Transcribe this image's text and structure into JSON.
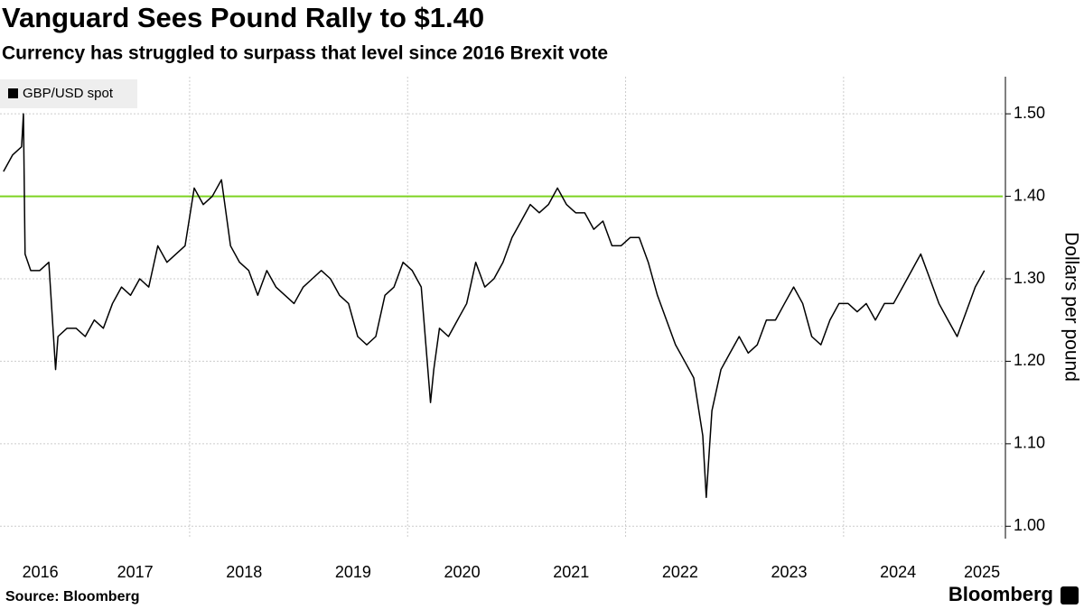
{
  "chart_data": {
    "type": "line",
    "title": "Vanguard Sees Pound Rally to $1.40",
    "subtitle": "Currency has struggled to surpass that level since 2016 Brexit vote",
    "y_label": "Dollars per pound",
    "source": "Source: Bloomberg",
    "logo": "Bloomberg",
    "x": [
      2016.292,
      2016.375,
      2016.458,
      2016.475,
      2016.49,
      2016.542,
      2016.625,
      2016.708,
      2016.77,
      2016.792,
      2016.875,
      2016.958,
      2017.042,
      2017.125,
      2017.208,
      2017.292,
      2017.375,
      2017.458,
      2017.542,
      2017.625,
      2017.708,
      2017.792,
      2017.875,
      2017.958,
      2018.042,
      2018.125,
      2018.208,
      2018.292,
      2018.375,
      2018.458,
      2018.542,
      2018.625,
      2018.708,
      2018.792,
      2018.875,
      2018.958,
      2019.042,
      2019.125,
      2019.208,
      2019.292,
      2019.375,
      2019.458,
      2019.542,
      2019.625,
      2019.708,
      2019.792,
      2019.875,
      2019.958,
      2020.042,
      2020.125,
      2020.21,
      2020.24,
      2020.292,
      2020.375,
      2020.458,
      2020.542,
      2020.625,
      2020.708,
      2020.792,
      2020.875,
      2020.958,
      2021.042,
      2021.125,
      2021.208,
      2021.292,
      2021.375,
      2021.458,
      2021.542,
      2021.625,
      2021.708,
      2021.792,
      2021.875,
      2021.958,
      2022.042,
      2022.125,
      2022.208,
      2022.292,
      2022.375,
      2022.458,
      2022.542,
      2022.625,
      2022.708,
      2022.74,
      2022.792,
      2022.875,
      2022.958,
      2023.042,
      2023.125,
      2023.208,
      2023.292,
      2023.375,
      2023.458,
      2023.542,
      2023.625,
      2023.708,
      2023.792,
      2023.875,
      2023.958,
      2024.042,
      2024.125,
      2024.208,
      2024.292,
      2024.375,
      2024.458,
      2024.542,
      2024.625,
      2024.708,
      2024.792,
      2024.875,
      2024.958,
      2025.042,
      2025.125,
      2025.208,
      2025.292
    ],
    "series": [
      {
        "name": "GBP/USD spot",
        "color": "#000000",
        "values": [
          1.43,
          1.45,
          1.46,
          1.5,
          1.33,
          1.31,
          1.31,
          1.32,
          1.19,
          1.23,
          1.24,
          1.24,
          1.23,
          1.25,
          1.24,
          1.27,
          1.29,
          1.28,
          1.3,
          1.29,
          1.34,
          1.32,
          1.33,
          1.34,
          1.41,
          1.39,
          1.4,
          1.42,
          1.34,
          1.32,
          1.31,
          1.28,
          1.31,
          1.29,
          1.28,
          1.27,
          1.29,
          1.3,
          1.31,
          1.3,
          1.28,
          1.27,
          1.23,
          1.22,
          1.23,
          1.28,
          1.29,
          1.32,
          1.31,
          1.29,
          1.15,
          1.19,
          1.24,
          1.23,
          1.25,
          1.27,
          1.32,
          1.29,
          1.3,
          1.32,
          1.35,
          1.37,
          1.39,
          1.38,
          1.39,
          1.41,
          1.39,
          1.38,
          1.38,
          1.36,
          1.37,
          1.34,
          1.34,
          1.35,
          1.35,
          1.32,
          1.28,
          1.25,
          1.22,
          1.2,
          1.18,
          1.11,
          1.035,
          1.14,
          1.19,
          1.21,
          1.23,
          1.21,
          1.22,
          1.25,
          1.25,
          1.27,
          1.29,
          1.27,
          1.23,
          1.22,
          1.25,
          1.27,
          1.27,
          1.26,
          1.27,
          1.25,
          1.27,
          1.27,
          1.29,
          1.31,
          1.33,
          1.3,
          1.27,
          1.25,
          1.23,
          1.26,
          1.29,
          1.31
        ]
      }
    ],
    "xlim": [
      2016.26,
      2025.46
    ],
    "xticks": [
      {
        "value": 2016.63,
        "label": "2016"
      },
      {
        "value": 2017.5,
        "label": "2017"
      },
      {
        "value": 2018.5,
        "label": "2018"
      },
      {
        "value": 2019.5,
        "label": "2019"
      },
      {
        "value": 2020.5,
        "label": "2020"
      },
      {
        "value": 2021.5,
        "label": "2021"
      },
      {
        "value": 2022.5,
        "label": "2022"
      },
      {
        "value": 2023.5,
        "label": "2023"
      },
      {
        "value": 2024.5,
        "label": "2024"
      },
      {
        "value": 2025.27,
        "label": "2025"
      }
    ],
    "xgrid": [
      2018,
      2020,
      2022,
      2024
    ],
    "ylim": [
      0.985,
      1.545
    ],
    "yticks": [
      {
        "value": 1.0,
        "label": "1.00"
      },
      {
        "value": 1.1,
        "label": "1.10"
      },
      {
        "value": 1.2,
        "label": "1.20"
      },
      {
        "value": 1.3,
        "label": "1.30"
      },
      {
        "value": 1.4,
        "label": "1.40"
      },
      {
        "value": 1.5,
        "label": "1.50"
      }
    ],
    "hline": {
      "value": 1.4,
      "color": "#7ed321"
    },
    "grid": true,
    "legend": "top-left"
  }
}
